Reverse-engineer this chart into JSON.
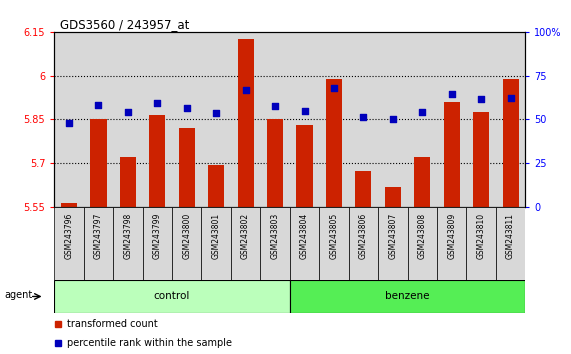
{
  "title": "GDS3560 / 243957_at",
  "samples": [
    "GSM243796",
    "GSM243797",
    "GSM243798",
    "GSM243799",
    "GSM243800",
    "GSM243801",
    "GSM243802",
    "GSM243803",
    "GSM243804",
    "GSM243805",
    "GSM243806",
    "GSM243807",
    "GSM243808",
    "GSM243809",
    "GSM243810",
    "GSM243811"
  ],
  "red_values": [
    5.565,
    5.85,
    5.72,
    5.865,
    5.82,
    5.695,
    6.125,
    5.85,
    5.83,
    5.99,
    5.675,
    5.62,
    5.72,
    5.91,
    5.875,
    5.99
  ],
  "blue_pct": [
    0.48,
    0.58,
    0.54,
    0.595,
    0.565,
    0.535,
    0.67,
    0.575,
    0.55,
    0.68,
    0.515,
    0.505,
    0.545,
    0.645,
    0.615,
    0.625
  ],
  "ymin": 5.55,
  "ymax": 6.15,
  "yticks": [
    5.55,
    5.7,
    5.85,
    6.0,
    6.15
  ],
  "ytick_labels": [
    "5.55",
    "5.7",
    "5.85",
    "6",
    "6.15"
  ],
  "y2ticks": [
    0.0,
    0.25,
    0.5,
    0.75,
    1.0
  ],
  "y2tick_labels": [
    "0",
    "25",
    "50",
    "75",
    "100%"
  ],
  "dotted_lines": [
    5.7,
    5.85,
    6.0
  ],
  "bar_color": "#cc2200",
  "dot_color": "#0000bb",
  "groups": [
    {
      "label": "control",
      "start": 0,
      "end": 8,
      "color": "#bbffbb"
    },
    {
      "label": "benzene",
      "start": 8,
      "end": 16,
      "color": "#55ee55"
    }
  ],
  "agent_label": "agent",
  "legend_red": "transformed count",
  "legend_blue": "percentile rank within the sample",
  "bar_width": 0.55,
  "col_bg": "#d8d8d8",
  "fig_bg": "#ffffff"
}
